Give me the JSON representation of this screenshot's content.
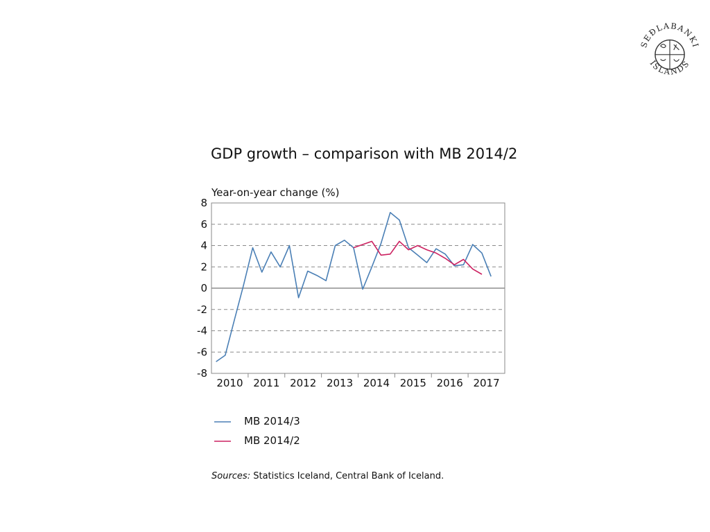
{
  "logo": {
    "top_text": "SEÐLABANKI",
    "bottom_text": "ÍSLANDS"
  },
  "colors": {
    "mb2014_3": "#4a7fb5",
    "mb2014_2": "#cc2160",
    "grid": "#8a8a8a",
    "frame": "#8a8a8a"
  },
  "chart_data": {
    "type": "line",
    "title": "GDP growth – comparison with MB 2014/2",
    "ylabel": "Year-on-year change (%)",
    "xlabel": "",
    "ylim": [
      -8,
      8
    ],
    "y_ticks": [
      8,
      6,
      4,
      2,
      0,
      -2,
      -4,
      -6,
      -8
    ],
    "year_labels": [
      "2010",
      "2011",
      "2012",
      "2013",
      "2014",
      "2015",
      "2016",
      "2017"
    ],
    "x_quarters": [
      "2010Q1",
      "2010Q2",
      "2010Q3",
      "2010Q4",
      "2011Q1",
      "2011Q2",
      "2011Q3",
      "2011Q4",
      "2012Q1",
      "2012Q2",
      "2012Q3",
      "2012Q4",
      "2013Q1",
      "2013Q2",
      "2013Q3",
      "2013Q4",
      "2014Q1",
      "2014Q2",
      "2014Q3",
      "2014Q4",
      "2015Q1",
      "2015Q2",
      "2015Q3",
      "2015Q4",
      "2016Q1",
      "2016Q2",
      "2016Q3",
      "2016Q4",
      "2017Q1",
      "2017Q2",
      "2017Q3",
      "2017Q4"
    ],
    "grid": "horizontal dashed",
    "legend_position": "below",
    "series": [
      {
        "name": "MB 2014/3",
        "color_key": "mb2014_3",
        "start_quarter": "2010Q1",
        "values": [
          -6.9,
          -6.3,
          -3.0,
          0.3,
          3.8,
          1.5,
          3.4,
          2.0,
          4.0,
          -0.9,
          1.6,
          1.2,
          0.7,
          4.0,
          4.5,
          3.8,
          -0.1,
          2.0,
          4.2,
          7.1,
          6.4,
          3.8,
          3.1,
          2.4,
          3.7,
          3.2,
          2.1,
          2.2,
          4.1,
          3.3,
          1.1
        ]
      },
      {
        "name": "MB 2014/2",
        "color_key": "mb2014_2",
        "start_quarter": "2013Q4",
        "values": [
          3.8,
          4.1,
          4.4,
          3.1,
          3.2,
          4.4,
          3.6,
          4.0,
          3.6,
          3.3,
          2.8,
          2.2,
          2.7,
          1.8,
          1.3
        ]
      }
    ]
  },
  "sources": {
    "label": "Sources:",
    "text": "Statistics Iceland, Central Bank of Iceland."
  }
}
